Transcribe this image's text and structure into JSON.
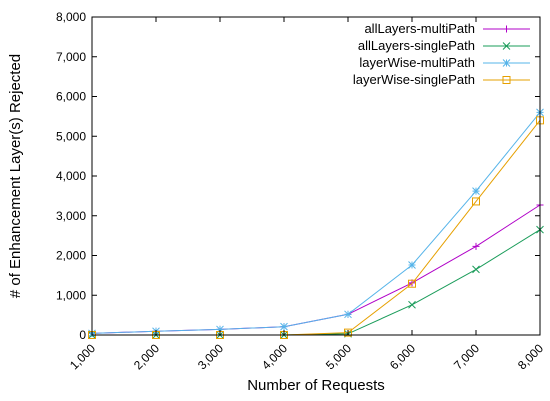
{
  "chart_data": {
    "type": "line",
    "title": "",
    "xlabel": "Number of Requests",
    "ylabel": "# of Enhancement Layer(s) Rejected",
    "x": [
      1000,
      2000,
      3000,
      4000,
      5000,
      6000,
      7000,
      8000
    ],
    "xlim": [
      1000,
      8000
    ],
    "ylim": [
      0,
      8000
    ],
    "x_ticks": [
      1000,
      2000,
      3000,
      4000,
      5000,
      6000,
      7000,
      8000
    ],
    "y_ticks": [
      0,
      1000,
      2000,
      3000,
      4000,
      5000,
      6000,
      7000,
      8000
    ],
    "x_tick_labels": [
      "1,000",
      "2,000",
      "3,000",
      "4,000",
      "5,000",
      "6,000",
      "7,000",
      "8,000"
    ],
    "y_tick_labels": [
      "0",
      "1,000",
      "2,000",
      "3,000",
      "4,000",
      "5,000",
      "6,000",
      "7,000",
      "8,000"
    ],
    "grid": false,
    "legend_position": "top-right",
    "series": [
      {
        "name": "allLayers-multiPath",
        "color": "#b000c8",
        "marker": "plus",
        "values": [
          40,
          95,
          140,
          210,
          520,
          1310,
          2230,
          3270
        ]
      },
      {
        "name": "allLayers-singlePath",
        "color": "#1a9c5a",
        "marker": "cross",
        "values": [
          0,
          0,
          0,
          0,
          30,
          760,
          1650,
          2650
        ]
      },
      {
        "name": "layerWise-multiPath",
        "color": "#56b4e9",
        "marker": "star",
        "values": [
          40,
          95,
          140,
          210,
          520,
          1760,
          3620,
          5600
        ]
      },
      {
        "name": "layerWise-singlePath",
        "color": "#e6a000",
        "marker": "square",
        "values": [
          0,
          0,
          0,
          0,
          60,
          1290,
          3360,
          5400
        ]
      }
    ]
  }
}
